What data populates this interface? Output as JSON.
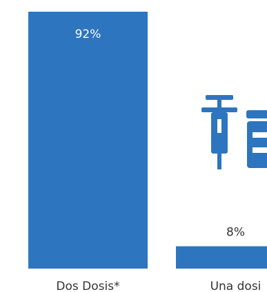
{
  "chart_data": {
    "type": "bar",
    "categories": [
      "Dos Dosis*",
      "Una dosi"
    ],
    "values": [
      92,
      8
    ],
    "data_labels": [
      "92%",
      "8%"
    ],
    "ylim": [
      0,
      100
    ],
    "grid": false,
    "legend": "none"
  },
  "icons": [
    "syringe-icon",
    "medicine-bottle-icon"
  ],
  "colors": {
    "bar": "#2E75C0",
    "label_inside": "#ffffff",
    "label_outside": "#333333",
    "icon": "#2E75C0"
  }
}
